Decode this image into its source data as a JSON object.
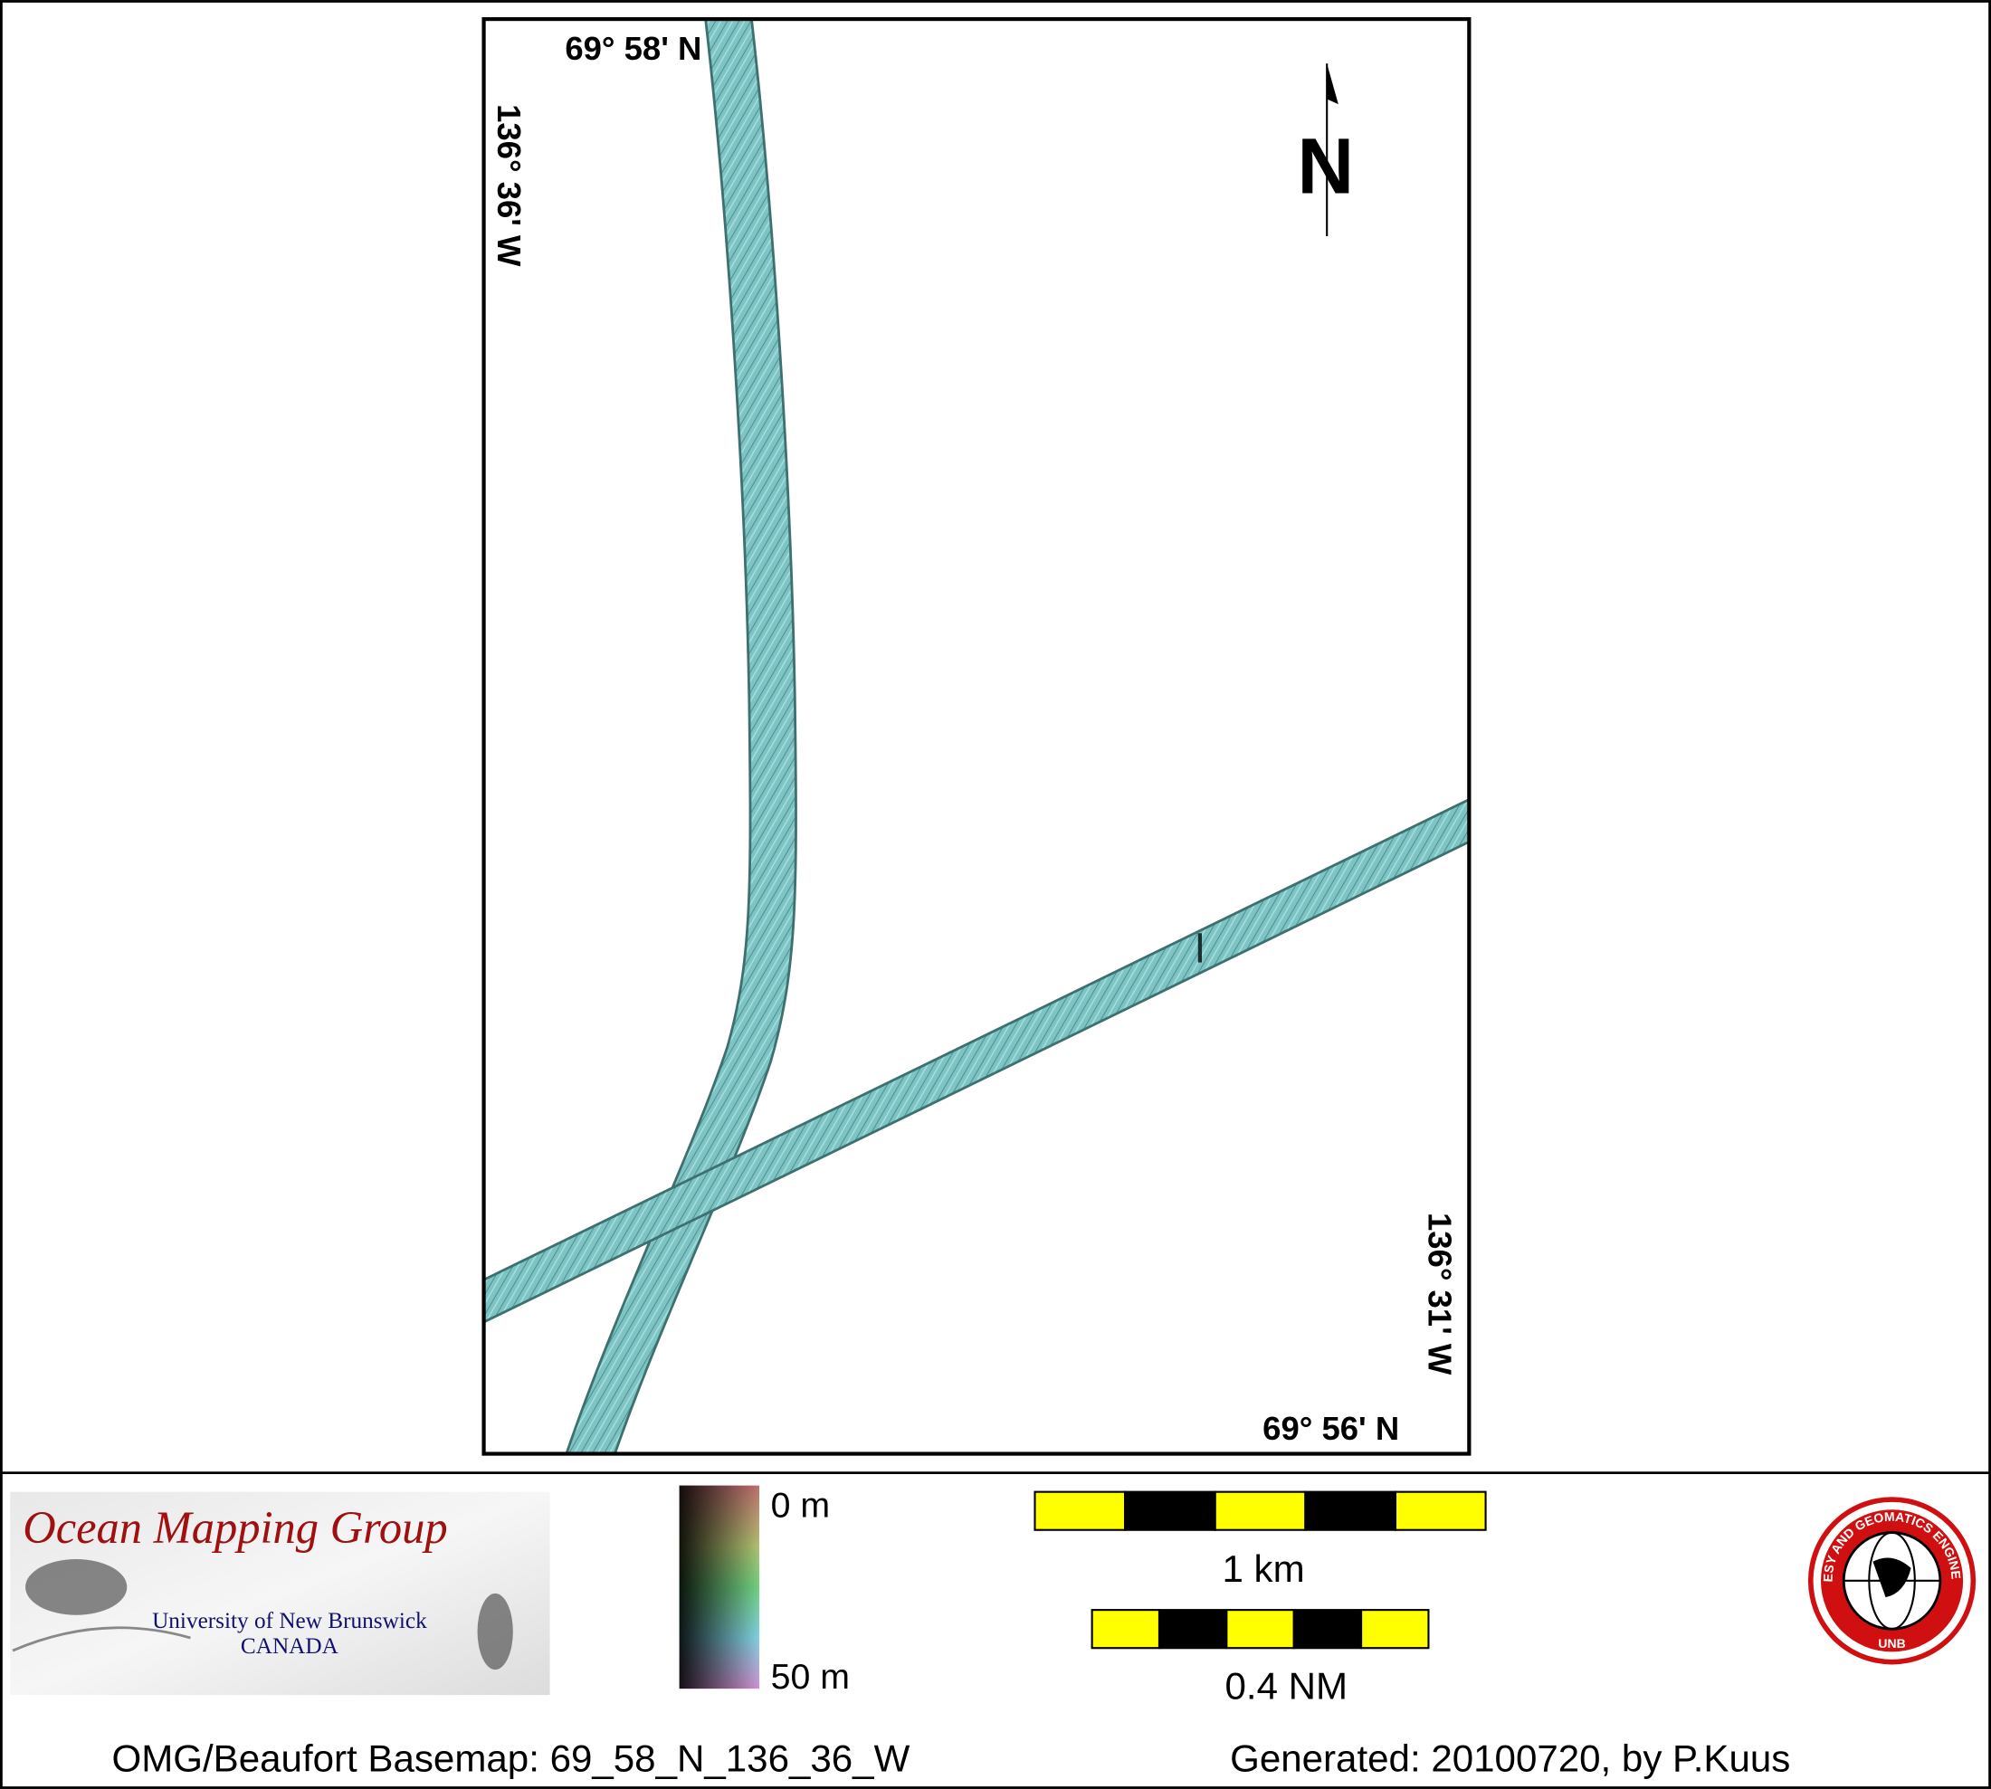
{
  "map": {
    "corner_labels": {
      "top_lat": "69° 58' N",
      "left_lon": "136° 36' W",
      "right_lon": "136° 31' W",
      "bottom_lat": "69° 56' N"
    },
    "north_arrow": "N"
  },
  "legend": {
    "depth_scale": {
      "top": "0 m",
      "bottom": "50 m"
    },
    "scale_bars": {
      "metric": "1 km",
      "nautical": "0.4 NM"
    }
  },
  "logos": {
    "omg": {
      "title": "Ocean Mapping Group",
      "line1": "University of New Brunswick",
      "line2": "CANADA"
    },
    "unb": {
      "ring": "GEODESY AND GEOMATICS ENGINEERING",
      "bottom": "UNB"
    }
  },
  "footer": {
    "basemap": "OMG/Beaufort Basemap: 69_58_N_136_36_W",
    "generated": "Generated: 20100720, by P.Kuus"
  }
}
